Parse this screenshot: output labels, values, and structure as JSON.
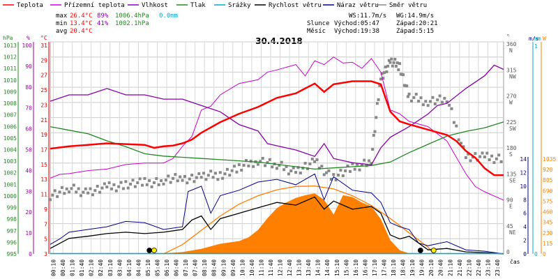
{
  "title": "30.4.2018",
  "legend": [
    {
      "label": "Teplota",
      "color": "#ff0000"
    },
    {
      "label": "Přízemní teplota",
      "color": "#cc00cc"
    },
    {
      "label": "Vlhkost",
      "color": "#8800aa"
    },
    {
      "label": "Tlak",
      "color": "#228822"
    },
    {
      "label": "Srážky",
      "color": "#00aacc"
    },
    {
      "label": "Rychlost větru",
      "color": "#000000"
    },
    {
      "label": "Náraz větru",
      "color": "#000088"
    },
    {
      "label": "Směr větru",
      "color": "#888888"
    }
  ],
  "stats": {
    "max_label": "max",
    "max_temp": "26.4°C",
    "max_hum": "89%",
    "max_press": "1006.4hPa",
    "max_rain": "0.0mm",
    "min_label": "min",
    "min_temp": "13.4°C",
    "min_hum": "41%",
    "min_press": "1002.1hPa",
    "avg_label": "avg",
    "avg_temp": "20.4°C"
  },
  "wind": {
    "ws": "WS:11.7m/s",
    "wg": "WG:14.9m/s"
  },
  "sun": {
    "label": "Slunce",
    "rise": "Východ:05:47",
    "set": "Západ:20:21"
  },
  "moon": {
    "label": "Měsíc",
    "rise": "Východ:19:38",
    "set": "Západ:5:15"
  },
  "axes": {
    "hpa_unit": "hPa",
    "pct_unit": "%",
    "c_unit": "°C",
    "deg_unit": "°",
    "ms_unit": "m/s",
    "mm_unit": "mm",
    "w_unit": "W",
    "x_unit": "čas",
    "hpa_ticks": [
      "1013",
      "1012",
      "1011",
      "1010",
      "1009",
      "1008",
      "1007",
      "1006",
      "1005",
      "1004",
      "1003",
      "1002",
      "1001",
      "1000",
      "999",
      "998",
      "997",
      "996",
      "995"
    ],
    "pct_ticks": [
      "100",
      "90",
      "80",
      "70",
      "60",
      "50",
      "40",
      "30",
      "20",
      "10",
      "0"
    ],
    "c_ticks": [
      "31",
      "29",
      "27",
      "25",
      "23",
      "21",
      "19",
      "17",
      "15",
      "13",
      "11",
      "9",
      "7",
      "5",
      "3"
    ],
    "dir_ticks": [
      "360\nN",
      "315\nNW",
      "270\nW",
      "225\nSW",
      "180\nS",
      "135\nSE",
      "90\nE",
      "45\nNE",
      "0"
    ],
    "ms_ticks": [
      "14",
      "12",
      "10",
      "8",
      "6",
      "4",
      "2",
      "0"
    ],
    "mm_ticks": [
      "1",
      "0"
    ],
    "w_ticks": [
      "1035",
      "920",
      "805",
      "690",
      "575",
      "460",
      "345",
      "230",
      "115",
      "0"
    ],
    "time_ticks": [
      "00:10",
      "00:40",
      "01:10",
      "01:40",
      "02:10",
      "02:40",
      "03:10",
      "03:40",
      "04:10",
      "04:40",
      "05:10",
      "05:40",
      "06:10",
      "06:40",
      "07:10",
      "07:40",
      "08:10",
      "08:40",
      "09:10",
      "09:40",
      "10:10",
      "10:40",
      "11:10",
      "11:40",
      "12:10",
      "12:40",
      "13:10",
      "13:40",
      "14:10",
      "14:40",
      "15:10",
      "15:40",
      "16:10",
      "16:40",
      "17:10",
      "17:40",
      "18:10",
      "18:40",
      "19:10",
      "19:40",
      "20:10",
      "20:40",
      "21:10",
      "21:40",
      "22:10",
      "22:40",
      "23:10",
      "23:40"
    ]
  },
  "chart_data": {
    "type": "line",
    "title": "30.4.2018",
    "x_unit": "čas",
    "temperature_c": [
      [
        0,
        16.9
      ],
      [
        1,
        17.2
      ],
      [
        2,
        17.4
      ],
      [
        3,
        17.6
      ],
      [
        4,
        17.5
      ],
      [
        5,
        17.4
      ],
      [
        5.5,
        17.0
      ],
      [
        6,
        17.2
      ],
      [
        6.5,
        17.3
      ],
      [
        7,
        17.6
      ],
      [
        7.5,
        18.1
      ],
      [
        8,
        19.0
      ],
      [
        9,
        20.4
      ],
      [
        10,
        21.5
      ],
      [
        11,
        22.4
      ],
      [
        12,
        23.6
      ],
      [
        13,
        24.2
      ],
      [
        14,
        25.5
      ],
      [
        14.5,
        24.4
      ],
      [
        15,
        25.4
      ],
      [
        16,
        25.8
      ],
      [
        17,
        25.8
      ],
      [
        17.5,
        25.4
      ],
      [
        18,
        21.8
      ],
      [
        18.5,
        20.5
      ],
      [
        19,
        20.1
      ],
      [
        20,
        19.4
      ],
      [
        21,
        18.7
      ],
      [
        21.5,
        17.9
      ],
      [
        22,
        16.6
      ],
      [
        22.5,
        15.7
      ],
      [
        23,
        14.3
      ],
      [
        23.5,
        13.4
      ],
      [
        24,
        13.4
      ]
    ],
    "ground_temperature_c": [
      [
        0,
        13.0
      ],
      [
        0.5,
        13.5
      ],
      [
        1,
        13.6
      ],
      [
        2,
        14.0
      ],
      [
        3,
        14.2
      ],
      [
        4,
        14.8
      ],
      [
        5,
        15.0
      ],
      [
        6,
        15.0
      ],
      [
        6.5,
        15.6
      ],
      [
        7,
        17.2
      ],
      [
        7.5,
        18.5
      ],
      [
        8,
        22.0
      ],
      [
        8.5,
        22.5
      ],
      [
        9,
        24.0
      ],
      [
        10,
        25.5
      ],
      [
        11,
        26.0
      ],
      [
        11.5,
        27.0
      ],
      [
        12,
        27.3
      ],
      [
        13,
        28.0
      ],
      [
        13.5,
        26.5
      ],
      [
        14,
        28.5
      ],
      [
        14.5,
        28.0
      ],
      [
        15,
        29.0
      ],
      [
        15.5,
        28.2
      ],
      [
        16,
        28.3
      ],
      [
        16.5,
        27.5
      ],
      [
        17,
        28.8
      ],
      [
        17.5,
        27.0
      ],
      [
        18,
        22.0
      ],
      [
        18.5,
        21.5
      ],
      [
        19,
        20.5
      ],
      [
        20,
        19.8
      ],
      [
        21,
        17.9
      ],
      [
        22,
        13.6
      ],
      [
        22.5,
        11.9
      ],
      [
        23,
        11.2
      ],
      [
        24,
        10.1
      ]
    ],
    "humidity_pct": [
      [
        0,
        72
      ],
      [
        1,
        75
      ],
      [
        2,
        75
      ],
      [
        3,
        78
      ],
      [
        4,
        75
      ],
      [
        5,
        75
      ],
      [
        6,
        73
      ],
      [
        7,
        73
      ],
      [
        8,
        70
      ],
      [
        9,
        67
      ],
      [
        10,
        61
      ],
      [
        11,
        58
      ],
      [
        11.5,
        52
      ],
      [
        12,
        51
      ],
      [
        13,
        49
      ],
      [
        14,
        46
      ],
      [
        14.5,
        52
      ],
      [
        15,
        45
      ],
      [
        16,
        43
      ],
      [
        17,
        42
      ],
      [
        17.5,
        50
      ],
      [
        18,
        55
      ],
      [
        19,
        60
      ],
      [
        20,
        66
      ],
      [
        20.5,
        70
      ],
      [
        21,
        71
      ],
      [
        22,
        78
      ],
      [
        23,
        84
      ],
      [
        23.5,
        89
      ],
      [
        24,
        87
      ]
    ],
    "pressure_hpa": [
      [
        0,
        1005.8
      ],
      [
        1,
        1005.5
      ],
      [
        2,
        1005.2
      ],
      [
        3,
        1004.6
      ],
      [
        4,
        1004.1
      ],
      [
        5,
        1003.5
      ],
      [
        6,
        1003.3
      ],
      [
        7,
        1003.2
      ],
      [
        8,
        1003.1
      ],
      [
        9,
        1003.0
      ],
      [
        10,
        1002.9
      ],
      [
        11,
        1002.8
      ],
      [
        12,
        1002.6
      ],
      [
        13,
        1002.4
      ],
      [
        14,
        1002.2
      ],
      [
        15,
        1002.3
      ],
      [
        16,
        1002.4
      ],
      [
        17,
        1002.5
      ],
      [
        18,
        1002.8
      ],
      [
        19,
        1003.6
      ],
      [
        20,
        1004.3
      ],
      [
        21,
        1005.0
      ],
      [
        22,
        1005.4
      ],
      [
        23,
        1005.7
      ],
      [
        24,
        1006.2
      ]
    ],
    "rain_mm": 0.0,
    "wind_speed_ms": [
      [
        0,
        0.8
      ],
      [
        1,
        2.3
      ],
      [
        2,
        2.6
      ],
      [
        3,
        3.0
      ],
      [
        4,
        3.2
      ],
      [
        5,
        3.0
      ],
      [
        6,
        3.2
      ],
      [
        7,
        3.6
      ],
      [
        7.5,
        5.0
      ],
      [
        8,
        5.6
      ],
      [
        8.5,
        3.6
      ],
      [
        9,
        5.2
      ],
      [
        10,
        6.0
      ],
      [
        11,
        6.8
      ],
      [
        12,
        7.6
      ],
      [
        13,
        7.2
      ],
      [
        14,
        8.4
      ],
      [
        14.5,
        6.6
      ],
      [
        15,
        7.8
      ],
      [
        16,
        6.6
      ],
      [
        17,
        7.0
      ],
      [
        17.5,
        6.0
      ],
      [
        18,
        2.8
      ],
      [
        18.5,
        2.2
      ],
      [
        19,
        2.6
      ],
      [
        20,
        0.6
      ],
      [
        21,
        0.8
      ],
      [
        22,
        0.3
      ],
      [
        23,
        0.2
      ],
      [
        24,
        0.0
      ]
    ],
    "wind_gust_ms": [
      [
        0,
        1.4
      ],
      [
        0.5,
        2.2
      ],
      [
        1,
        3.2
      ],
      [
        2,
        3.6
      ],
      [
        3,
        4.0
      ],
      [
        4,
        4.8
      ],
      [
        5,
        4.6
      ],
      [
        6,
        3.6
      ],
      [
        7,
        4.0
      ],
      [
        7.3,
        9.2
      ],
      [
        8,
        10.0
      ],
      [
        8.5,
        6.0
      ],
      [
        9,
        8.6
      ],
      [
        10,
        9.4
      ],
      [
        11,
        10.6
      ],
      [
        12,
        11.0
      ],
      [
        13,
        10.2
      ],
      [
        14,
        11.8
      ],
      [
        14.5,
        8.0
      ],
      [
        15,
        11.4
      ],
      [
        16,
        9.4
      ],
      [
        17,
        9.0
      ],
      [
        17.5,
        7.6
      ],
      [
        18,
        4.6
      ],
      [
        18.5,
        4.0
      ],
      [
        19,
        3.6
      ],
      [
        19.5,
        1.6
      ],
      [
        20,
        1.2
      ],
      [
        21,
        1.8
      ],
      [
        22,
        0.6
      ],
      [
        23,
        0.4
      ],
      [
        24,
        0.0
      ]
    ],
    "wind_dir_deg": [
      [
        0,
        100
      ],
      [
        1,
        110
      ],
      [
        2,
        105
      ],
      [
        3,
        112
      ],
      [
        4,
        118
      ],
      [
        5,
        120
      ],
      [
        6,
        125
      ],
      [
        7,
        128
      ],
      [
        8,
        130
      ],
      [
        9,
        135
      ],
      [
        10,
        145
      ],
      [
        11,
        160
      ],
      [
        12,
        150
      ],
      [
        13,
        140
      ],
      [
        14,
        155
      ],
      [
        15,
        130
      ],
      [
        16,
        145
      ],
      [
        17,
        160
      ],
      [
        17.5,
        300
      ],
      [
        18,
        325
      ],
      [
        18.5,
        320
      ],
      [
        19,
        265
      ],
      [
        20,
        260
      ],
      [
        21,
        263
      ],
      [
        22,
        165
      ],
      [
        23,
        163
      ],
      [
        24,
        163
      ]
    ],
    "solar_w": [
      [
        0,
        0
      ],
      [
        5.5,
        0
      ],
      [
        6,
        5
      ],
      [
        7,
        20
      ],
      [
        8,
        55
      ],
      [
        9,
        110
      ],
      [
        10,
        140
      ],
      [
        10.5,
        180
      ],
      [
        11,
        260
      ],
      [
        11.5,
        390
      ],
      [
        12,
        500
      ],
      [
        12.5,
        560
      ],
      [
        13,
        610
      ],
      [
        13.5,
        640
      ],
      [
        14,
        660
      ],
      [
        14.5,
        590
      ],
      [
        15,
        430
      ],
      [
        15.5,
        640
      ],
      [
        16,
        620
      ],
      [
        16.5,
        560
      ],
      [
        17,
        520
      ],
      [
        17.5,
        380
      ],
      [
        18,
        150
      ],
      [
        18.5,
        40
      ],
      [
        19,
        5
      ],
      [
        19.5,
        0
      ],
      [
        24,
        0
      ]
    ],
    "solar_clear_sky_w": [
      [
        6,
        0
      ],
      [
        7,
        110
      ],
      [
        8,
        280
      ],
      [
        9,
        450
      ],
      [
        10,
        590
      ],
      [
        11,
        690
      ],
      [
        12,
        760
      ],
      [
        13,
        800
      ],
      [
        14,
        805
      ],
      [
        15,
        770
      ],
      [
        16,
        690
      ],
      [
        17,
        575
      ],
      [
        18,
        420
      ],
      [
        19,
        250
      ],
      [
        20,
        80
      ],
      [
        20.3,
        0
      ]
    ],
    "axes": {
      "temperature_c": [
        3,
        31
      ],
      "humidity_pct": [
        0,
        100
      ],
      "pressure_hpa": [
        995,
        1013
      ],
      "wind_ms": [
        0,
        14
      ],
      "wind_dir_deg": [
        0,
        360
      ],
      "solar_w": [
        0,
        1035
      ],
      "time_h": [
        0,
        24
      ]
    },
    "grid": true
  },
  "colors": {
    "temperature": "#ff0000",
    "ground_temperature": "#cc00cc",
    "humidity": "#8800aa",
    "pressure": "#228822",
    "rain": "#00aacc",
    "wind_speed": "#000000",
    "wind_gust": "#000088",
    "wind_dir": "#888888",
    "solar": "#ff8000",
    "clear_sky": "#ff8000",
    "axis_red": "#cc0000",
    "axis_purple": "#990099",
    "axis_green": "#228822"
  }
}
